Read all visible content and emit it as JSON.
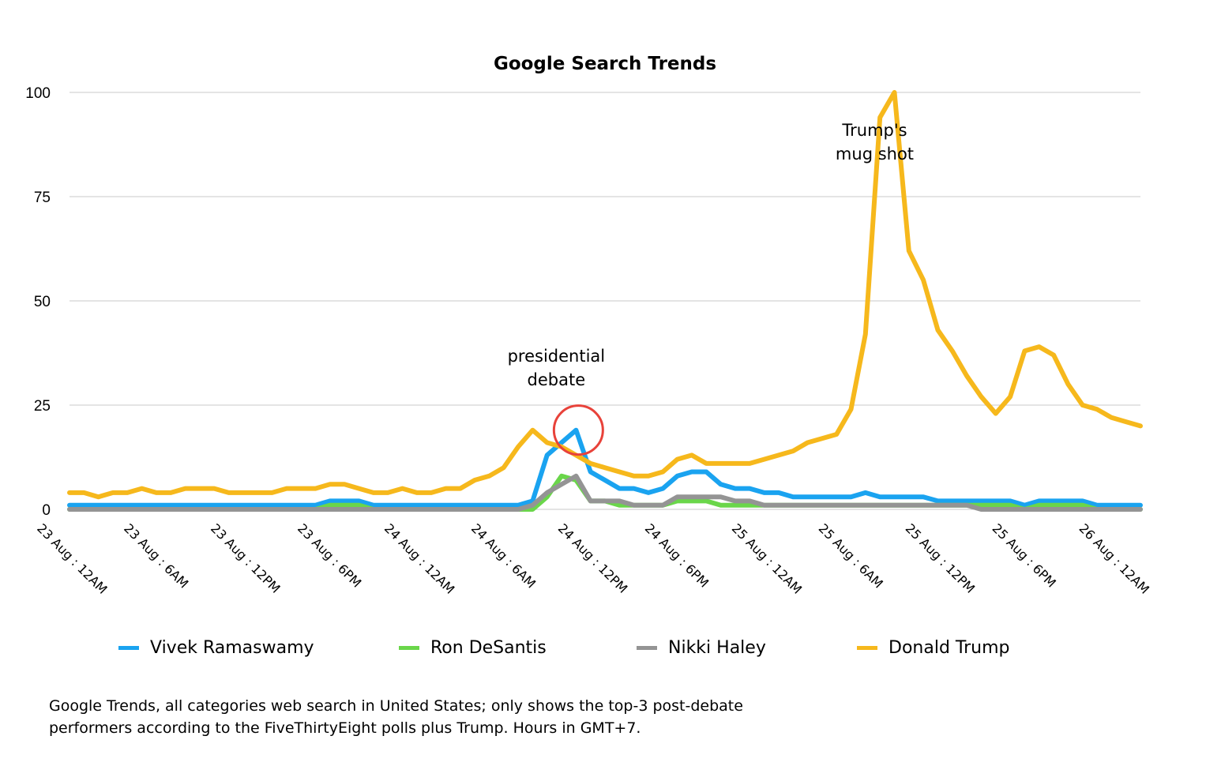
{
  "chart_data": {
    "type": "line",
    "title": "Google Search Trends",
    "xlabel": "",
    "ylabel": "",
    "ylim": [
      0,
      100
    ],
    "yticks": [
      "0",
      "25",
      "50",
      "75",
      "100"
    ],
    "x_tick_labels": [
      "23 Aug : 12AM",
      "23 Aug : 6AM",
      "23 Aug : 12PM",
      "23 Aug : 6PM",
      "24 Aug : 12AM",
      "24 Aug : 6AM",
      "24 Aug : 12PM",
      "24 Aug : 6PM",
      "25 Aug : 12AM",
      "25 Aug : 6AM",
      "25 Aug : 12PM",
      "25 Aug : 6PM",
      "26 Aug : 12AM"
    ],
    "x_tick_hours": [
      0,
      6,
      12,
      18,
      24,
      30,
      36,
      42,
      48,
      54,
      60,
      66,
      72
    ],
    "x_hours_start": 0,
    "x_hours_step": 1,
    "grid": true,
    "legend_position": "bottom",
    "series": [
      {
        "name": "Vivek Ramaswamy",
        "color": "#1aa3f0",
        "values": [
          1,
          1,
          1,
          1,
          1,
          1,
          1,
          1,
          1,
          1,
          1,
          1,
          1,
          1,
          1,
          1,
          1,
          1,
          2,
          2,
          2,
          1,
          1,
          1,
          1,
          1,
          1,
          1,
          1,
          1,
          1,
          1,
          2,
          13,
          16,
          19,
          9,
          7,
          5,
          5,
          4,
          5,
          8,
          9,
          9,
          6,
          5,
          5,
          4,
          4,
          3,
          3,
          3,
          3,
          3,
          4,
          3,
          3,
          3,
          3,
          2,
          2,
          2,
          2,
          2,
          2,
          1,
          2,
          2,
          2,
          2,
          1,
          1,
          1,
          1
        ]
      },
      {
        "name": "Ron DeSantis",
        "color": "#6ad64a",
        "values": [
          0,
          0,
          0,
          0,
          0,
          0,
          0,
          0,
          0,
          0,
          0,
          0,
          0,
          0,
          0,
          0,
          0,
          0,
          1,
          1,
          1,
          0,
          0,
          0,
          0,
          0,
          0,
          0,
          0,
          0,
          0,
          0,
          0,
          3,
          8,
          7,
          2,
          2,
          1,
          1,
          1,
          1,
          2,
          2,
          2,
          1,
          1,
          1,
          1,
          1,
          1,
          1,
          1,
          1,
          1,
          1,
          1,
          1,
          1,
          1,
          1,
          1,
          1,
          1,
          1,
          1,
          0,
          1,
          1,
          1,
          1,
          0,
          0,
          0,
          0
        ]
      },
      {
        "name": "Nikki Haley",
        "color": "#949494",
        "values": [
          0,
          0,
          0,
          0,
          0,
          0,
          0,
          0,
          0,
          0,
          0,
          0,
          0,
          0,
          0,
          0,
          0,
          0,
          0,
          0,
          0,
          0,
          0,
          0,
          0,
          0,
          0,
          0,
          0,
          0,
          0,
          0,
          1,
          4,
          6,
          8,
          2,
          2,
          2,
          1,
          1,
          1,
          3,
          3,
          3,
          3,
          2,
          2,
          1,
          1,
          1,
          1,
          1,
          1,
          1,
          1,
          1,
          1,
          1,
          1,
          1,
          1,
          1,
          0,
          0,
          0,
          0,
          0,
          0,
          0,
          0,
          0,
          0,
          0,
          0
        ]
      },
      {
        "name": "Donald Trump",
        "color": "#f6b81c",
        "values": [
          4,
          4,
          3,
          4,
          4,
          5,
          4,
          4,
          5,
          5,
          5,
          4,
          4,
          4,
          4,
          5,
          5,
          5,
          6,
          6,
          5,
          4,
          4,
          5,
          4,
          4,
          5,
          5,
          7,
          8,
          10,
          15,
          19,
          16,
          15,
          13,
          11,
          10,
          9,
          8,
          8,
          9,
          12,
          13,
          11,
          11,
          11,
          11,
          12,
          13,
          14,
          16,
          17,
          18,
          24,
          42,
          94,
          100,
          62,
          55,
          43,
          38,
          32,
          27,
          23,
          27,
          38,
          39,
          37,
          30,
          25,
          24,
          22,
          21,
          20
        ]
      }
    ],
    "annotations": [
      {
        "lines": [
          "presidential",
          "debate"
        ],
        "hour": 35
      },
      {
        "lines": [
          "Trump's",
          "mug shot"
        ],
        "hour": 57
      }
    ],
    "highlight_circle": {
      "hour": 35,
      "value": 19,
      "color": "#e8423a"
    }
  },
  "footnote": {
    "line1": "Google Trends, all categories web search in United States; only shows the top-3 post-debate",
    "line2": "performers according to the FiveThirtyEight polls plus Trump. Hours in GMT+7."
  }
}
